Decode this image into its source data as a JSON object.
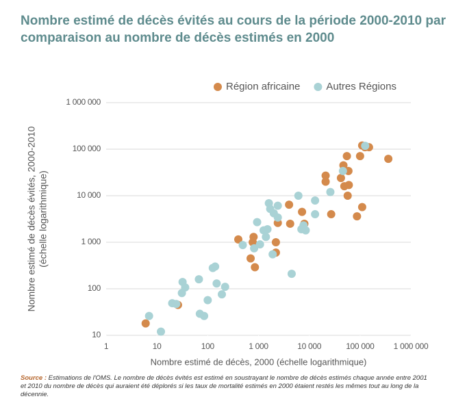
{
  "chart_data": {
    "type": "scatter",
    "title": "Nombre estimé de décès évités au cours de la période 2000-2010 par comparaison au nombre de décès estimés en 2000",
    "xlabel": "Nombre estimé de décès, 2000 (échelle logarithmique)",
    "ylabel": "Nombre estimé de décès évités, 2000-2010",
    "ylabel_note": "(échelle logarithmique)",
    "source_label": "Source :",
    "source_text": "Estimations de l'OMS. Le nombre de décès évités est estimé en soustrayant le nombre de décès estimés chaque année entre 2001 et 2010 du nombre de décès qui auraient été déplorés si les taux de mortalité estimés en 2000 étaient restés les mêmes tout au long de la décennie.",
    "xscale": "log",
    "yscale": "log",
    "xlim": [
      1,
      1000000
    ],
    "ylim": [
      10,
      1000000
    ],
    "xticks": [
      1,
      10,
      100,
      {
        "value": 1000,
        "label": "1 000"
      },
      {
        "value": 10000,
        "label": "10 000"
      },
      {
        "value": 100000,
        "label": "100 000"
      },
      {
        "value": 1000000,
        "label": "1 000 000"
      }
    ],
    "yticks": [
      10,
      100,
      {
        "value": 1000,
        "label": "1 000"
      },
      {
        "value": 10000,
        "label": "10 000"
      },
      {
        "value": 100000,
        "label": "100 000"
      },
      {
        "value": 1000000,
        "label": "1 000 000"
      }
    ],
    "grid": true,
    "legend": "top-right",
    "series": [
      {
        "name": "Région africaine",
        "color": "#d48a4c",
        "x": [
          6,
          26,
          400,
          700,
          770,
          800,
          850,
          2200,
          2200,
          2400,
          4200,
          4000,
          7200,
          8000,
          21000,
          21000,
          27000,
          42000,
          47000,
          49000,
          55000,
          59000,
          60000,
          57000,
          87000,
          110000,
          100000,
          110000,
          125000,
          150000,
          360000
        ],
        "values": [
          18,
          45,
          1150,
          450,
          1000,
          1300,
          290,
          1000,
          600,
          2600,
          2500,
          6400,
          4500,
          2500,
          27000,
          20000,
          4000,
          24000,
          45000,
          16000,
          71000,
          34000,
          17000,
          10000,
          3600,
          5700,
          71000,
          120000,
          110000,
          110000,
          62000
        ]
      },
      {
        "name": "Autres Régions",
        "color": "#a9d2d5",
        "x": [
          7,
          12,
          20,
          24,
          31,
          32,
          36,
          67,
          70,
          85,
          100,
          126,
          140,
          150,
          190,
          220,
          490,
          820,
          940,
          1070,
          1260,
          1400,
          1500,
          1900,
          1600,
          1700,
          2000,
          2400,
          2400,
          4500,
          6100,
          7000,
          7700,
          8500,
          13000,
          13000,
          26000,
          46000,
          126000
        ],
        "values": [
          26,
          12,
          49,
          47,
          81,
          140,
          107,
          160,
          29,
          26,
          57,
          280,
          300,
          130,
          76,
          110,
          870,
          740,
          2700,
          900,
          1800,
          1300,
          1900,
          550,
          6900,
          5200,
          4200,
          3400,
          6100,
          210,
          10000,
          1900,
          2300,
          1800,
          7900,
          4000,
          12000,
          34000,
          118000
        ]
      }
    ]
  }
}
